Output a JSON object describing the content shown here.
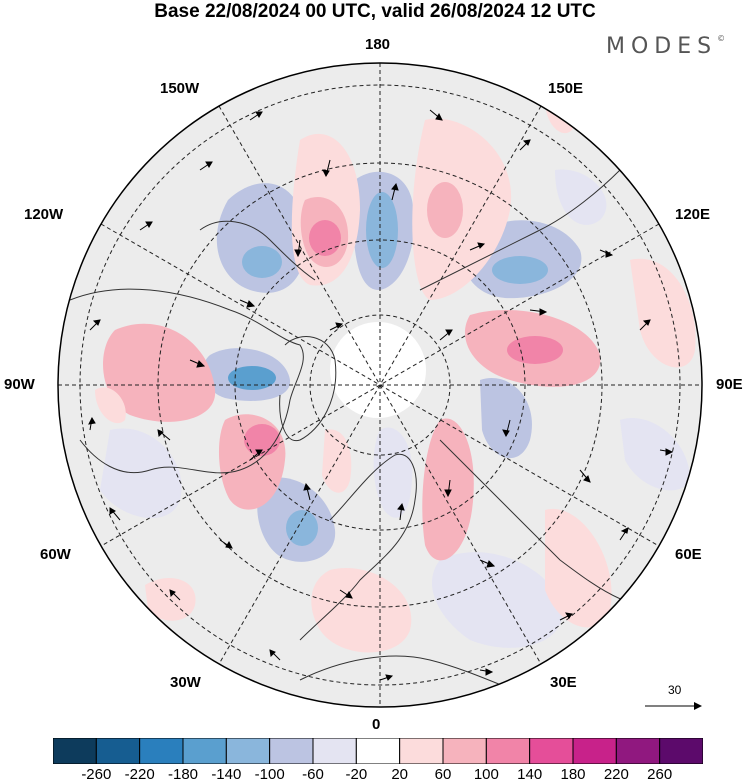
{
  "title": "Base 22/08/2024 00 UTC, valid 26/08/2024 12 UTC",
  "brand": "MODES",
  "brand_mark": "©",
  "longitude_labels": {
    "l180": "180",
    "l150w": "150W",
    "l150e": "150E",
    "l120w": "120W",
    "l120e": "120E",
    "l90w": "90W",
    "l90e": "90E",
    "l60w": "60W",
    "l60e": "60E",
    "l30w": "30W",
    "l30e": "30E",
    "l0": "0"
  },
  "vector_reference": "30",
  "colorbar": {
    "colors": [
      "#0d3b5c",
      "#165d91",
      "#2a7fbd",
      "#5a9fcf",
      "#8ab6dc",
      "#bcc4e2",
      "#e4e4f2",
      "#ffffff",
      "#fcdcdc",
      "#f6b3bd",
      "#f184a8",
      "#e54e99",
      "#c8228a",
      "#90187f",
      "#5c0a6b"
    ],
    "ticks": [
      "-260",
      "-220",
      "-180",
      "-140",
      "-100",
      "-60",
      "-20",
      "20",
      "60",
      "100",
      "140",
      "180",
      "220",
      "260"
    ]
  },
  "anomaly_colors": {
    "neutral": "#ececec",
    "neg_light": "#e4e4f2",
    "neg_mid": "#bcc4e2",
    "neg_strong": "#8ab6dc",
    "neg_core": "#5a9fcf",
    "pos_light": "#fcdcdc",
    "pos_mid": "#f6b3bd",
    "pos_strong": "#f184a8"
  }
}
